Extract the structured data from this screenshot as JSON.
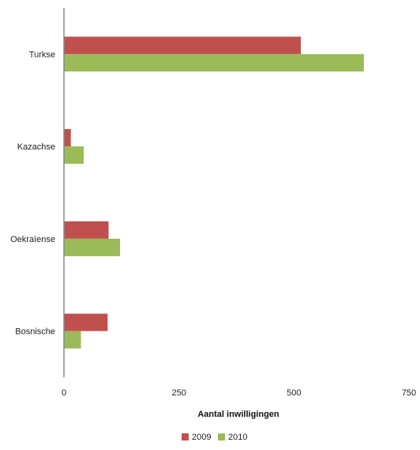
{
  "chart_data": {
    "type": "bar",
    "orientation": "horizontal",
    "categories": [
      "Turkse",
      "Kazachse",
      "Oekraïense",
      "Bosnische"
    ],
    "series": [
      {
        "name": "2009",
        "color": "#c0504d",
        "values": [
          515,
          15,
          97,
          95
        ]
      },
      {
        "name": "2010",
        "color": "#9bbb59",
        "values": [
          652,
          43,
          122,
          37
        ]
      }
    ],
    "xlabel": "Aantal inwilligingen",
    "xlim": [
      0,
      750
    ],
    "xticks": [
      0,
      250,
      500,
      750
    ],
    "grid": false,
    "legend": "bottom"
  }
}
